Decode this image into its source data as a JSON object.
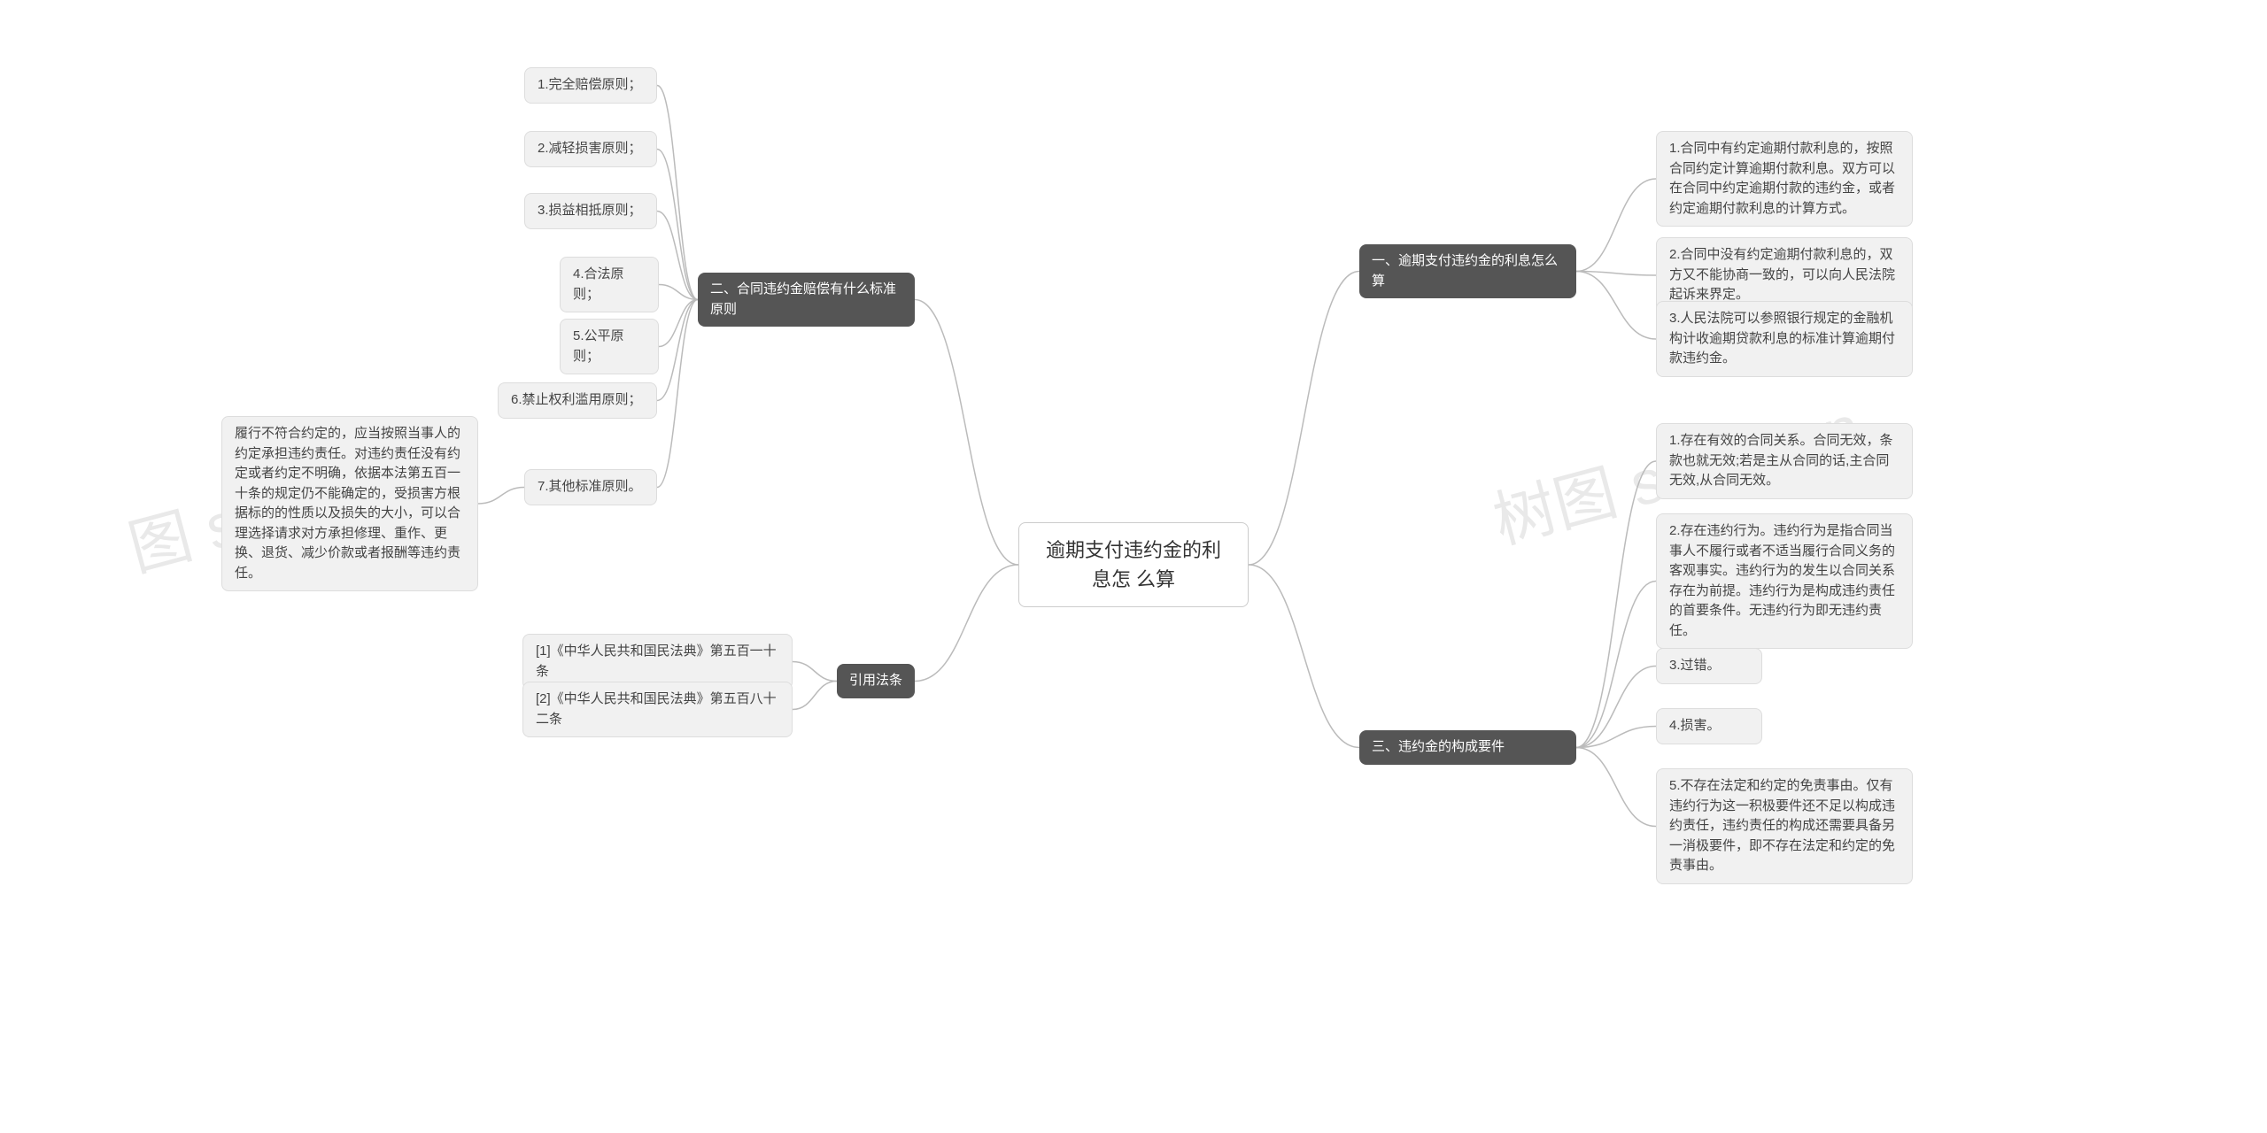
{
  "watermarks": {
    "left": "图 shutu.cn",
    "right": "树图 shutu.cn"
  },
  "root": {
    "text": "逾期支付违约金的利息怎\n么算"
  },
  "right_branches": [
    {
      "label": "一、逾期支付违约金的利息怎么算",
      "children": [
        "1.合同中有约定逾期付款利息的，按照合同约定计算逾期付款利息。双方可以在合同中约定逾期付款的违约金，或者约定逾期付款利息的计算方式。",
        "2.合同中没有约定逾期付款利息的，双方又不能协商一致的，可以向人民法院起诉来界定。",
        "3.人民法院可以参照银行规定的金融机构计收逾期贷款利息的标准计算逾期付款违约金。"
      ]
    },
    {
      "label": "三、违约金的构成要件",
      "children": [
        "1.存在有效的合同关系。合同无效，条款也就无效;若是主从合同的话,主合同无效,从合同无效。",
        "2.存在违约行为。违约行为是指合同当事人不履行或者不适当履行合同义务的客观事实。违约行为的发生以合同关系存在为前提。违约行为是构成违约责任的首要条件。无违约行为即无违约责任。",
        "3.过错。",
        "4.损害。",
        "5.不存在法定和约定的免责事由。仅有违约行为这一积极要件还不足以构成违约责任，违约责任的构成还需要具备另一消极要件，即不存在法定和约定的免责事由。"
      ]
    }
  ],
  "left_branches": [
    {
      "label": "二、合同违约金赔偿有什么标准原则",
      "children": [
        {
          "text": "1.完全赔偿原则；",
          "sub": null
        },
        {
          "text": "2.减轻损害原则；",
          "sub": null
        },
        {
          "text": "3.损益相抵原则；",
          "sub": null
        },
        {
          "text": "4.合法原则；",
          "sub": null
        },
        {
          "text": "5.公平原则；",
          "sub": null
        },
        {
          "text": "6.禁止权利滥用原则；",
          "sub": null
        },
        {
          "text": "7.其他标准原则。",
          "sub": "履行不符合约定的，应当按照当事人的约定承担违约责任。对违约责任没有约定或者约定不明确，依据本法第五百一十条的规定仍不能确定的，受损害方根据标的的性质以及损失的大小，可以合理选择请求对方承担修理、重作、更换、退货、减少价款或者报酬等违约责任。"
        }
      ]
    },
    {
      "label": "引用法条",
      "children": [
        {
          "text": "[1]《中华人民共和国民法典》第五百一十条",
          "sub": null
        },
        {
          "text": "[2]《中华人民共和国民法典》第五百八十二条",
          "sub": null
        }
      ]
    }
  ],
  "colors": {
    "root_border": "#cccccc",
    "dark_bg": "#555555",
    "light_bg": "#f1f1f1",
    "light_border": "#dddddd",
    "connector": "#bbbbbb",
    "watermark": "#d8d8d8"
  }
}
